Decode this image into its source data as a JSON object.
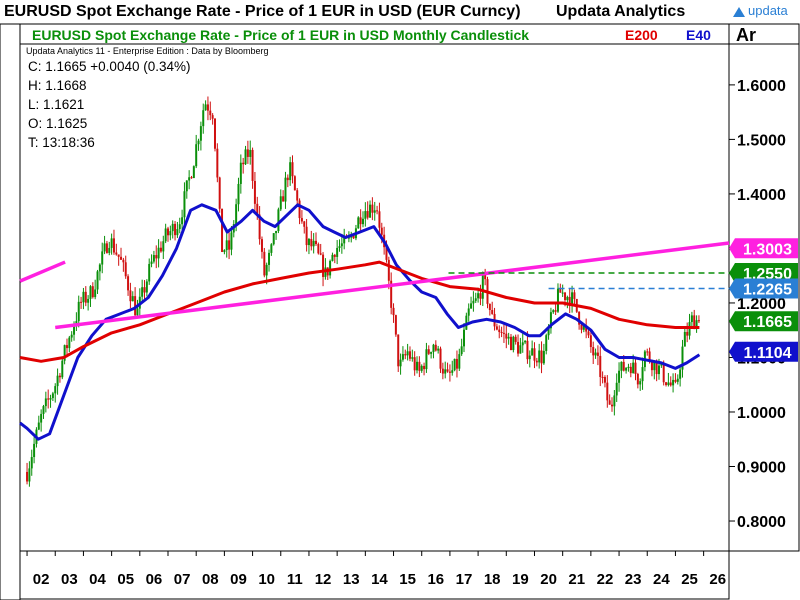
{
  "header": {
    "title": "EURUSD Spot Exchange Rate - Price of 1 EUR in USD (EUR Curncy)",
    "vendor": "Updata Analytics",
    "logo_text": "updata"
  },
  "chart_data": {
    "type": "candlestick",
    "title": "EURUSD Spot Exchange Rate - Price of 1 EUR in USD Monthly Candlestick",
    "credit": "Updata Analytics 11 - Enterprise Edition : Data by Bloomberg",
    "legend": [
      "E200",
      "E40"
    ],
    "legend_colors": {
      "E200": "#e00000",
      "E40": "#1010cc"
    },
    "ohlc_readout": {
      "close": "C: 1.1665  +0.0040 (0.34%)",
      "high": "H: 1.1668",
      "low": "L: 1.1621",
      "open": "O: 1.1625",
      "time": "T: 13:18:36"
    },
    "right_panel_label": "Ar",
    "x_axis_labels": [
      "02",
      "03",
      "04",
      "05",
      "06",
      "07",
      "08",
      "09",
      "10",
      "11",
      "12",
      "13",
      "14",
      "15",
      "16",
      "17",
      "18",
      "19",
      "20",
      "21",
      "22",
      "23",
      "24",
      "25",
      "26"
    ],
    "y_axis_labels": [
      "1.6000",
      "1.5000",
      "1.4000",
      "1.3000",
      "1.2000",
      "1.1000",
      "1.0000",
      "0.9000",
      "0.8000"
    ],
    "y_range": [
      0.745,
      1.675
    ],
    "x_range": [
      2001.75,
      2026.9
    ],
    "candle_colors": {
      "up": "#0a8f0a",
      "down": "#d01010"
    },
    "close_path": [
      [
        2002.0,
        0.89
      ],
      [
        2002.5,
        0.99
      ],
      [
        2003.0,
        1.05
      ],
      [
        2003.4,
        1.12
      ],
      [
        2003.9,
        1.2
      ],
      [
        2004.3,
        1.22
      ],
      [
        2004.9,
        1.32
      ],
      [
        2005.3,
        1.28
      ],
      [
        2005.9,
        1.18
      ],
      [
        2006.4,
        1.27
      ],
      [
        2006.9,
        1.32
      ],
      [
        2007.4,
        1.35
      ],
      [
        2007.9,
        1.46
      ],
      [
        2008.3,
        1.57
      ],
      [
        2008.6,
        1.55
      ],
      [
        2008.9,
        1.3
      ],
      [
        2009.2,
        1.3
      ],
      [
        2009.6,
        1.45
      ],
      [
        2009.9,
        1.48
      ],
      [
        2010.4,
        1.25
      ],
      [
        2010.7,
        1.3
      ],
      [
        2011.0,
        1.38
      ],
      [
        2011.3,
        1.45
      ],
      [
        2011.9,
        1.31
      ],
      [
        2012.2,
        1.3
      ],
      [
        2012.6,
        1.25
      ],
      [
        2012.9,
        1.3
      ],
      [
        2013.4,
        1.31
      ],
      [
        2013.9,
        1.37
      ],
      [
        2014.4,
        1.38
      ],
      [
        2014.7,
        1.28
      ],
      [
        2014.9,
        1.21
      ],
      [
        2015.2,
        1.08
      ],
      [
        2015.5,
        1.11
      ],
      [
        2015.9,
        1.07
      ],
      [
        2016.4,
        1.13
      ],
      [
        2016.9,
        1.06
      ],
      [
        2017.3,
        1.09
      ],
      [
        2017.7,
        1.19
      ],
      [
        2017.9,
        1.2
      ],
      [
        2018.2,
        1.24
      ],
      [
        2018.5,
        1.17
      ],
      [
        2018.9,
        1.14
      ],
      [
        2019.4,
        1.12
      ],
      [
        2019.9,
        1.11
      ],
      [
        2020.3,
        1.1
      ],
      [
        2020.6,
        1.17
      ],
      [
        2020.9,
        1.22
      ],
      [
        2021.3,
        1.21
      ],
      [
        2021.7,
        1.16
      ],
      [
        2021.9,
        1.13
      ],
      [
        2022.3,
        1.08
      ],
      [
        2022.7,
        1.0
      ],
      [
        2022.9,
        1.07
      ],
      [
        2023.4,
        1.09
      ],
      [
        2023.7,
        1.06
      ],
      [
        2023.9,
        1.11
      ],
      [
        2024.4,
        1.08
      ],
      [
        2024.8,
        1.05
      ],
      [
        2025.0,
        1.04
      ],
      [
        2025.3,
        1.13
      ],
      [
        2025.6,
        1.17
      ],
      [
        2025.85,
        1.1665
      ]
    ],
    "series": [
      {
        "name": "E40",
        "color": "#1010cc",
        "points": [
          [
            2001.75,
            0.98
          ],
          [
            2002.0,
            0.97
          ],
          [
            2002.4,
            0.95
          ],
          [
            2002.8,
            0.96
          ],
          [
            2003.3,
            1.03
          ],
          [
            2003.8,
            1.1
          ],
          [
            2004.3,
            1.14
          ],
          [
            2004.8,
            1.17
          ],
          [
            2005.3,
            1.18
          ],
          [
            2005.8,
            1.19
          ],
          [
            2006.3,
            1.21
          ],
          [
            2006.8,
            1.25
          ],
          [
            2007.3,
            1.3
          ],
          [
            2007.8,
            1.37
          ],
          [
            2008.2,
            1.38
          ],
          [
            2008.7,
            1.37
          ],
          [
            2009.1,
            1.33
          ],
          [
            2009.6,
            1.35
          ],
          [
            2010.0,
            1.37
          ],
          [
            2010.4,
            1.35
          ],
          [
            2010.8,
            1.34
          ],
          [
            2011.2,
            1.36
          ],
          [
            2011.6,
            1.38
          ],
          [
            2012.0,
            1.37
          ],
          [
            2012.5,
            1.34
          ],
          [
            2012.9,
            1.33
          ],
          [
            2013.3,
            1.32
          ],
          [
            2013.8,
            1.33
          ],
          [
            2014.3,
            1.34
          ],
          [
            2014.7,
            1.31
          ],
          [
            2015.1,
            1.27
          ],
          [
            2015.6,
            1.24
          ],
          [
            2016.0,
            1.22
          ],
          [
            2016.5,
            1.21
          ],
          [
            2016.9,
            1.18
          ],
          [
            2017.3,
            1.155
          ],
          [
            2017.8,
            1.165
          ],
          [
            2018.3,
            1.17
          ],
          [
            2018.8,
            1.165
          ],
          [
            2019.3,
            1.155
          ],
          [
            2019.8,
            1.14
          ],
          [
            2020.2,
            1.14
          ],
          [
            2020.6,
            1.16
          ],
          [
            2021.1,
            1.18
          ],
          [
            2021.5,
            1.17
          ],
          [
            2022.0,
            1.15
          ],
          [
            2022.5,
            1.115
          ],
          [
            2023.0,
            1.1
          ],
          [
            2023.5,
            1.1
          ],
          [
            2024.0,
            1.095
          ],
          [
            2024.5,
            1.09
          ],
          [
            2025.0,
            1.08
          ],
          [
            2025.4,
            1.09
          ],
          [
            2025.85,
            1.105
          ]
        ]
      },
      {
        "name": "E200",
        "color": "#e00000",
        "points": [
          [
            2001.75,
            1.1
          ],
          [
            2002.5,
            1.093
          ],
          [
            2003.3,
            1.1
          ],
          [
            2004.0,
            1.12
          ],
          [
            2005.0,
            1.145
          ],
          [
            2006.0,
            1.16
          ],
          [
            2007.0,
            1.18
          ],
          [
            2008.0,
            1.2
          ],
          [
            2009.0,
            1.22
          ],
          [
            2010.0,
            1.235
          ],
          [
            2011.0,
            1.245
          ],
          [
            2012.0,
            1.255
          ],
          [
            2013.0,
            1.262
          ],
          [
            2014.0,
            1.27
          ],
          [
            2014.5,
            1.275
          ],
          [
            2015.0,
            1.265
          ],
          [
            2016.0,
            1.245
          ],
          [
            2017.0,
            1.23
          ],
          [
            2018.0,
            1.225
          ],
          [
            2019.0,
            1.21
          ],
          [
            2020.0,
            1.2
          ],
          [
            2021.0,
            1.2
          ],
          [
            2022.0,
            1.19
          ],
          [
            2023.0,
            1.17
          ],
          [
            2024.0,
            1.16
          ],
          [
            2025.0,
            1.155
          ],
          [
            2025.85,
            1.155
          ]
        ]
      }
    ],
    "trendlines": [
      {
        "color": "#ff20e0",
        "from": [
          2001.75,
          1.24
        ],
        "to": [
          2003.35,
          1.275
        ]
      },
      {
        "color": "#ff20e0",
        "from": [
          2003.0,
          1.155
        ],
        "to": [
          2026.9,
          1.31
        ]
      }
    ],
    "hlines": [
      {
        "color": "#0a8f0a",
        "y": 1.255,
        "x_start": 2016.95
      },
      {
        "color": "#2a7fd4",
        "y": 1.2265,
        "x_start": 2020.5
      }
    ],
    "price_tags": [
      {
        "label": "1.3003",
        "y": 1.3003,
        "bg": "#ff20e0",
        "fg": "#ffffff"
      },
      {
        "label": "1.2550",
        "y": 1.255,
        "bg": "#0a8f0a",
        "fg": "#ffffff"
      },
      {
        "label": "1.2265",
        "y": 1.2265,
        "bg": "#2a7fd4",
        "fg": "#ffffff"
      },
      {
        "label": "1.1665",
        "y": 1.1665,
        "bg": "#0a8f0a",
        "fg": "#ffffff"
      },
      {
        "label": "1.1104",
        "y": 1.1104,
        "bg": "#1010cc",
        "fg": "#ffffff"
      }
    ]
  }
}
